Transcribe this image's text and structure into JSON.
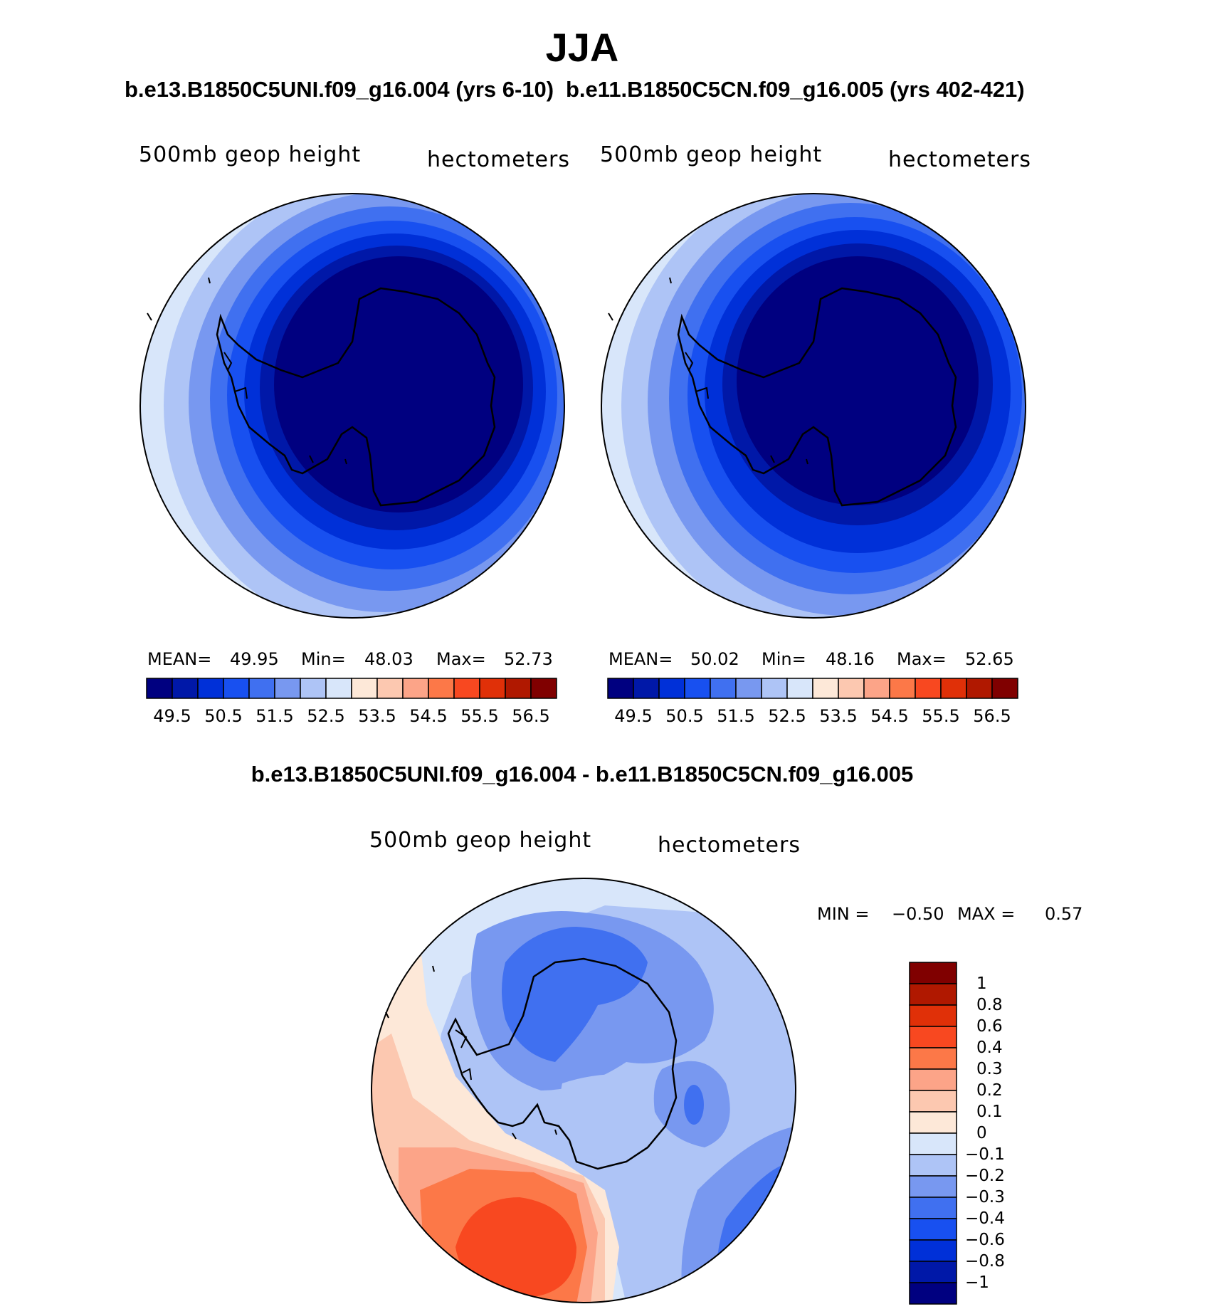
{
  "title": "JJA",
  "panels": [
    {
      "case": "b.e13.B1850C5UNI.f09_g16.004 (yrs 6-10)",
      "variable": "500mb geop height",
      "units": "hectometers",
      "stats": {
        "mean_label": "MEAN=",
        "mean": "49.95",
        "min_label": "Min=",
        "min": "48.03",
        "max_label": "Max=",
        "max": "52.73"
      }
    },
    {
      "case": "b.e11.B1850C5CN.f09_g16.005 (yrs 402-421)",
      "variable": "500mb geop height",
      "units": "hectometers",
      "stats": {
        "mean_label": "MEAN=",
        "mean": "50.02",
        "min_label": "Min=",
        "min": "48.16",
        "max_label": "Max=",
        "max": "52.65"
      }
    }
  ],
  "top_colorbar": {
    "colors": [
      "#000080",
      "#0018a8",
      "#0030d8",
      "#1850f0",
      "#4070f0",
      "#7898f0",
      "#aec4f6",
      "#d8e6fa",
      "#fde8d8",
      "#fcc8b0",
      "#fca488",
      "#fc7848",
      "#f84820",
      "#e03008",
      "#b01800",
      "#800000"
    ],
    "labels": [
      "49.5",
      "50.5",
      "51.5",
      "52.5",
      "53.5",
      "54.5",
      "55.5",
      "56.5"
    ]
  },
  "difference": {
    "title": "b.e13.B1850C5UNI.f09_g16.004 - b.e11.B1850C5CN.f09_g16.005",
    "variable": "500mb geop height",
    "units": "hectometers",
    "min_label": "MIN =",
    "min": "−0.50",
    "max_label": "MAX =",
    "max": "0.57",
    "colorbar": {
      "colors": [
        "#800000",
        "#b01800",
        "#e03008",
        "#f84820",
        "#fc7848",
        "#fca488",
        "#fcc8b0",
        "#fde8d8",
        "#d8e6fa",
        "#aec4f6",
        "#7898f0",
        "#4070f0",
        "#1850f0",
        "#0030d8",
        "#0018a8",
        "#000080"
      ],
      "labels": [
        "1",
        "0.8",
        "0.6",
        "0.4",
        "0.3",
        "0.2",
        "0.1",
        "0",
        "−0.1",
        "−0.2",
        "−0.3",
        "−0.4",
        "−0.6",
        "−0.8",
        "−1"
      ]
    }
  }
}
